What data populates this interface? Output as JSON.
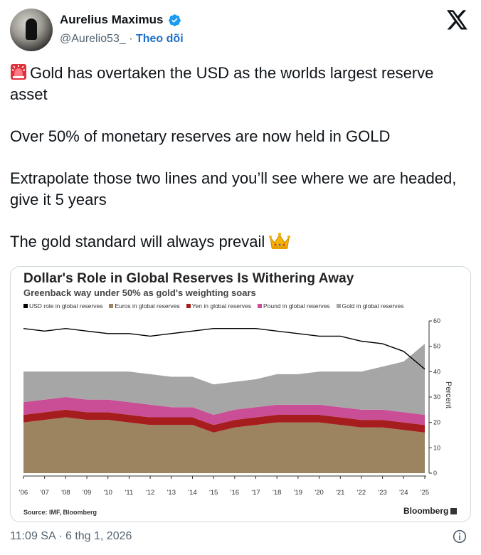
{
  "author": {
    "name": "Aurelius Maximus",
    "handle": "@Aurelio53_",
    "separator": "·",
    "follow_label": "Theo dõi",
    "verified_icon": "verified-badge-icon",
    "verified_color": "#1d9bf0"
  },
  "tweet": {
    "line1": "Gold has overtaken the USD as the worlds largest reserve asset",
    "line2": "Over 50% of monetary reserves are now held in GOLD",
    "line3": "Extrapolate those two lines and you’ll see where we are headed, give it 5 years",
    "line4": "The gold standard will always prevail"
  },
  "timestamp": "11:09 SA · 6 thg 1, 2026",
  "chart_data": {
    "type": "area",
    "title": "Dollar's Role in Global Reserves Is Withering Away",
    "subtitle": "Greenback way under 50% as gold's weighting soars",
    "legend": [
      {
        "label": "USD role in global reserves",
        "color": "#000000"
      },
      {
        "label": "Euros in global reserves",
        "color": "#9c8460"
      },
      {
        "label": "Yen in global reserves",
        "color": "#a51d1d"
      },
      {
        "label": "Pound in global reserves",
        "color": "#c94e95"
      },
      {
        "label": "Gold in global reserves",
        "color": "#a6a6a6"
      }
    ],
    "x": [
      "'06",
      "'07",
      "'08",
      "'09",
      "'10",
      "'11",
      "'12",
      "'13",
      "'14",
      "'15",
      "'16",
      "'17",
      "'18",
      "'19",
      "'20",
      "'21",
      "'22",
      "'23",
      "'24",
      "'25"
    ],
    "ylabel": "Percent",
    "ylim": [
      0,
      60
    ],
    "yticks": [
      "60",
      "50",
      "40",
      "30",
      "20",
      "10",
      "0"
    ],
    "series": [
      {
        "name": "USD role in global reserves",
        "kind": "line",
        "values": [
          57,
          56,
          57,
          56,
          55,
          55,
          54,
          55,
          56,
          57,
          57,
          57,
          56,
          55,
          54,
          54,
          52,
          51,
          48,
          41
        ]
      },
      {
        "name": "Euros in global reserves",
        "kind": "stacked",
        "values": [
          20,
          21,
          22,
          21,
          21,
          20,
          19,
          19,
          19,
          16,
          18,
          19,
          20,
          20,
          20,
          19,
          18,
          18,
          17,
          16
        ]
      },
      {
        "name": "Yen in global reserves",
        "kind": "stacked",
        "values": [
          3,
          3,
          3,
          3,
          3,
          3,
          3,
          3,
          3,
          3,
          3,
          3,
          3,
          3,
          3,
          3,
          3,
          3,
          3,
          3
        ]
      },
      {
        "name": "Pound in global reserves",
        "kind": "stacked",
        "values": [
          5,
          5,
          5,
          5,
          5,
          5,
          5,
          4,
          4,
          4,
          4,
          4,
          4,
          4,
          4,
          4,
          4,
          4,
          4,
          4
        ]
      },
      {
        "name": "Gold in global reserves",
        "kind": "stacked",
        "values": [
          12,
          11,
          10,
          11,
          11,
          12,
          12,
          12,
          12,
          12,
          11,
          11,
          12,
          12,
          13,
          14,
          15,
          17,
          20,
          28
        ]
      }
    ],
    "source": "Source: IMF, Bloomberg",
    "brand": "Bloomberg"
  }
}
